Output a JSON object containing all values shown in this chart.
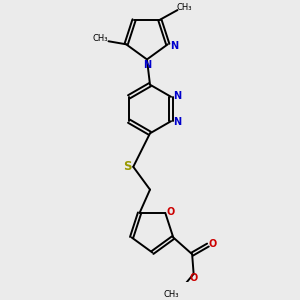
{
  "background_color": "#ebebeb",
  "bond_color": "#000000",
  "n_color": "#0000cc",
  "o_color": "#cc0000",
  "s_color": "#999900",
  "figsize": [
    3.0,
    3.0
  ],
  "dpi": 100,
  "xlim": [
    -2.5,
    2.5
  ],
  "ylim": [
    -4.5,
    4.5
  ]
}
